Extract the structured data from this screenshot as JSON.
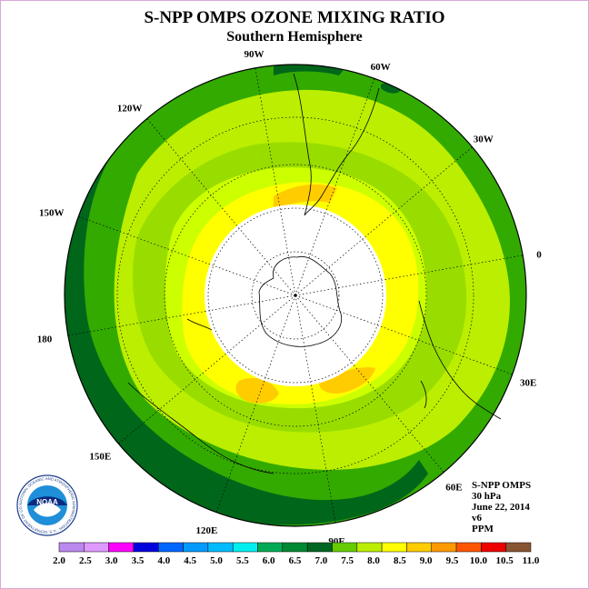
{
  "header": {
    "title": "S-NPP OMPS OZONE MIXING RATIO",
    "subtitle": "Southern Hemisphere"
  },
  "map": {
    "projection": "polar-stereographic-south",
    "longitude_labels": [
      "90W",
      "60W",
      "30W",
      "0",
      "30E",
      "60E",
      "90E",
      "120E",
      "150E",
      "180",
      "150W",
      "120W"
    ],
    "colors": {
      "ocean_band_dark": "#00661a",
      "band_green": "#33aa00",
      "band_light_green": "#99dd00",
      "band_lime": "#ccff00",
      "band_yellow": "#ffff00",
      "band_gold": "#ffcc00",
      "no_data": "#ffffff"
    }
  },
  "info": {
    "lines": [
      "S-NPP OMPS",
      "30 hPa",
      "June 22, 2014",
      "v6",
      "PPM"
    ]
  },
  "logo": {
    "text": "NOAA",
    "ring_text": "NATIONAL OCEANIC AND ATMOSPHERIC ADMINISTRATION · U.S. DEPARTMENT OF COMMERCE"
  },
  "colorbar": {
    "labels": [
      "2.0",
      "2.5",
      "3.0",
      "3.5",
      "4.0",
      "4.5",
      "5.0",
      "5.5",
      "6.0",
      "6.5",
      "7.0",
      "7.5",
      "8.0",
      "8.5",
      "9.0",
      "9.5",
      "10.0",
      "10.5",
      "11.0"
    ],
    "colors": [
      "#bb88ee",
      "#dd99ff",
      "#ff00ff",
      "#0000dd",
      "#0066ff",
      "#0099ff",
      "#00bbff",
      "#00eeee",
      "#00aa55",
      "#008833",
      "#006622",
      "#66cc00",
      "#bbee00",
      "#ffff00",
      "#ffcc00",
      "#ff9900",
      "#ff5500",
      "#ee0000",
      "#885533"
    ]
  }
}
